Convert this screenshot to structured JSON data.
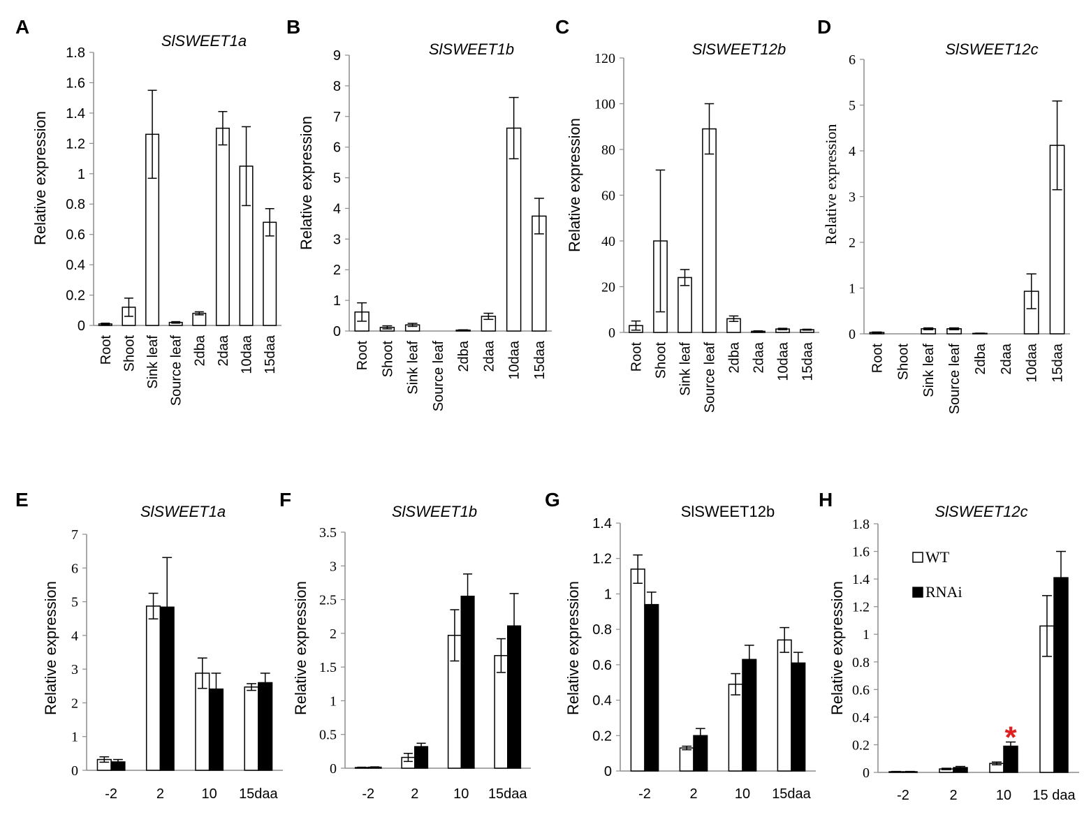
{
  "chart_data": [
    {
      "panel": "A",
      "type": "bar",
      "title": "SlSWEET1a",
      "title_italic": true,
      "ylabel": "Relative expression",
      "xlabel": "",
      "categories": [
        "Root",
        "Shoot",
        "Sink leaf",
        "Source leaf",
        "2dba",
        "2daa",
        "10daa",
        "15daa"
      ],
      "ylim": [
        0,
        1.8
      ],
      "yticks": [
        0,
        0.2,
        0.4,
        0.6,
        0.8,
        1,
        1.2,
        1.4,
        1.6,
        1.8
      ],
      "series": [
        {
          "name": "",
          "values": [
            0.01,
            0.12,
            1.26,
            0.02,
            0.08,
            1.3,
            1.05,
            0.68
          ],
          "errors": [
            0.005,
            0.06,
            0.29,
            0.005,
            0.01,
            0.11,
            0.26,
            0.09
          ]
        }
      ]
    },
    {
      "panel": "B",
      "type": "bar",
      "title": "SlSWEET1b",
      "title_italic": true,
      "ylabel": "Relative expression",
      "xlabel": "",
      "categories": [
        "Root",
        "Shoot",
        "Sink leaf",
        "Source leaf",
        "2dba",
        "2daa",
        "10daa",
        "15daa"
      ],
      "ylim": [
        0,
        9
      ],
      "yticks": [
        0,
        1,
        2,
        3,
        4,
        5,
        6,
        7,
        8,
        9
      ],
      "series": [
        {
          "name": "",
          "values": [
            0.62,
            0.12,
            0.2,
            0,
            0.03,
            0.48,
            6.62,
            3.75
          ],
          "errors": [
            0.3,
            0.05,
            0.05,
            0,
            0.01,
            0.1,
            1.0,
            0.58
          ]
        }
      ]
    },
    {
      "panel": "C",
      "type": "bar",
      "title": "SlSWEET12b",
      "title_italic": true,
      "ylabel": "Relative expression",
      "xlabel": "",
      "serif_ticks": true,
      "categories": [
        "Root",
        "Shoot",
        "Sink leaf",
        "Source leaf",
        "2dba",
        "2daa",
        "10daa",
        "15daa"
      ],
      "ylim": [
        0,
        120
      ],
      "yticks": [
        0,
        20,
        40,
        60,
        80,
        100,
        120
      ],
      "series": [
        {
          "name": "",
          "values": [
            3,
            40,
            24,
            89,
            6,
            0.5,
            1.5,
            1.2
          ],
          "errors": [
            2,
            31,
            3.5,
            11,
            1.2,
            0.2,
            0.3,
            0.2
          ]
        }
      ]
    },
    {
      "panel": "D",
      "type": "bar",
      "title": "SlSWEET12c",
      "title_italic": true,
      "ylabel": "Relative expression",
      "xlabel": "",
      "serif_ticks": true,
      "categories": [
        "Root",
        "Shoot",
        "Sink leaf",
        "Source leaf",
        "2dba",
        "2daa",
        "10daa",
        "15daa"
      ],
      "ylim": [
        0,
        6
      ],
      "yticks": [
        0,
        1,
        2,
        3,
        4,
        5,
        6
      ],
      "series": [
        {
          "name": "",
          "values": [
            0.03,
            0,
            0.11,
            0.11,
            0.01,
            0,
            0.93,
            4.12
          ],
          "errors": [
            0.01,
            0,
            0.02,
            0.02,
            0.005,
            0,
            0.38,
            0.97
          ]
        }
      ]
    },
    {
      "panel": "E",
      "type": "bar",
      "title": "SlSWEET1a",
      "title_italic": true,
      "ylabel": "Relative expression",
      "xlabel": "",
      "categories": [
        "-2",
        "2",
        "10",
        "15daa"
      ],
      "ylim": [
        0,
        7
      ],
      "serif_ticks": true,
      "yticks": [
        0,
        1,
        2,
        3,
        4,
        5,
        6,
        7
      ],
      "series": [
        {
          "name": "WT",
          "fill": "#ffffff",
          "values": [
            0.32,
            4.87,
            2.88,
            2.47
          ],
          "errors": [
            0.08,
            0.38,
            0.45,
            0.1
          ]
        },
        {
          "name": "RNAi",
          "fill": "#000000",
          "values": [
            0.25,
            4.84,
            2.41,
            2.6
          ],
          "errors": [
            0.07,
            1.47,
            0.47,
            0.28
          ]
        }
      ]
    },
    {
      "panel": "F",
      "type": "bar",
      "title": "SlSWEET1b",
      "title_italic": true,
      "ylabel": "Relative expression",
      "xlabel": "",
      "categories": [
        "-2",
        "2",
        "10",
        "15daa"
      ],
      "ylim": [
        0,
        3.5
      ],
      "serif_ticks": true,
      "yticks": [
        0,
        0.5,
        1,
        1.5,
        2,
        2.5,
        3,
        3.5
      ],
      "series": [
        {
          "name": "WT",
          "fill": "#ffffff",
          "values": [
            0.01,
            0.16,
            1.97,
            1.67
          ],
          "errors": [
            0.005,
            0.06,
            0.38,
            0.25
          ]
        },
        {
          "name": "RNAi",
          "fill": "#000000",
          "values": [
            0.015,
            0.32,
            2.55,
            2.11
          ],
          "errors": [
            0.005,
            0.05,
            0.33,
            0.48
          ]
        }
      ]
    },
    {
      "panel": "G",
      "type": "bar",
      "title": "SlSWEET12b",
      "title_italic": false,
      "ylabel": "Relative expression",
      "xlabel": "",
      "categories": [
        "-2",
        "2",
        "10",
        "15daa"
      ],
      "ylim": [
        0,
        1.4
      ],
      "yticks": [
        0,
        0.2,
        0.4,
        0.6,
        0.8,
        1,
        1.2,
        1.4
      ],
      "series": [
        {
          "name": "WT",
          "fill": "#ffffff",
          "values": [
            1.14,
            0.13,
            0.49,
            0.74
          ],
          "errors": [
            0.08,
            0.01,
            0.06,
            0.07
          ]
        },
        {
          "name": "RNAi",
          "fill": "#000000",
          "values": [
            0.94,
            0.2,
            0.63,
            0.61
          ],
          "errors": [
            0.07,
            0.04,
            0.08,
            0.06
          ]
        }
      ]
    },
    {
      "panel": "H",
      "type": "bar",
      "title": "SlSWEET12c",
      "title_italic": true,
      "ylabel": "Relative expression",
      "xlabel": "",
      "categories": [
        "-2",
        "2",
        "10",
        "15 daa"
      ],
      "ylim": [
        0,
        1.8
      ],
      "serif_ticks": true,
      "yticks": [
        0,
        0.2,
        0.4,
        0.6,
        0.8,
        1,
        1.2,
        1.4,
        1.6,
        1.8
      ],
      "series": [
        {
          "name": "WT",
          "fill": "#ffffff",
          "values": [
            0.005,
            0.025,
            0.065,
            1.06
          ],
          "errors": [
            0.002,
            0.005,
            0.01,
            0.22
          ]
        },
        {
          "name": "RNAi",
          "fill": "#000000",
          "values": [
            0.005,
            0.035,
            0.19,
            1.41
          ],
          "errors": [
            0.002,
            0.008,
            0.03,
            0.19
          ]
        }
      ],
      "legend": [
        "WT",
        "RNAi"
      ],
      "legend_position": "upper-left",
      "annotation": {
        "text": "*",
        "category": "10",
        "color": "#e02020"
      }
    }
  ]
}
